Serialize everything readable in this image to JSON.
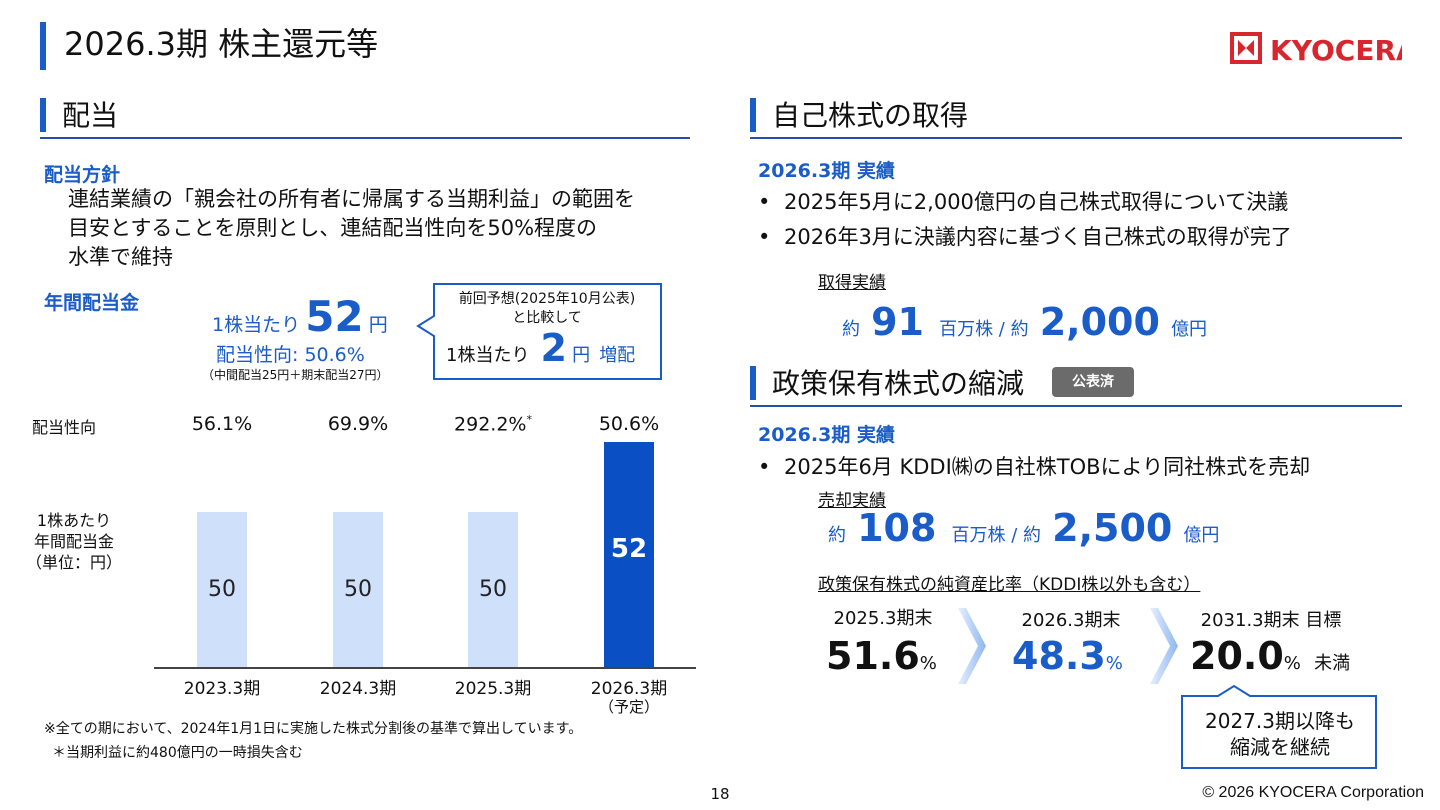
{
  "header": {
    "title": "2026.3期 株主還元等",
    "logo_text": "KYOCERA"
  },
  "dividend": {
    "section_title": "配当",
    "policy_head": "配当方針",
    "policy_lines": [
      "連結業績の「親会社の所有者に帰属する当期利益」の範囲を",
      "目安とすることを原則とし、連結配当性向を50%程度の",
      "水準で維持"
    ],
    "annual_head": "年間配当金",
    "per_share_prefix": "1株当たり",
    "per_share_value": "52",
    "per_share_unit": "円",
    "payout_line": "配当性向: 50.6%",
    "breakdown": "（中間配当25円＋期末配当27円）",
    "callout": {
      "line1": "前回予想(2025年10月公表)",
      "line2": "と比較して",
      "prefix": "1株当たり",
      "value": "2",
      "unit": "円",
      "suffix": "増配"
    }
  },
  "chart_data": {
    "type": "bar",
    "row_label_ratio": "配当性向",
    "ylabel_lines": [
      "1株あたり",
      "年間配当金",
      "（単位：円）"
    ],
    "categories": [
      "2023.3期",
      "2024.3期",
      "2025.3期",
      "2026.3期"
    ],
    "category_note": [
      "",
      "",
      "",
      "（予定）"
    ],
    "values": [
      50,
      50,
      50,
      52
    ],
    "value_labels": [
      "50",
      "50",
      "50",
      "52"
    ],
    "payout_ratios": [
      "56.1%",
      "69.9%",
      "292.2%",
      "50.6%"
    ],
    "ratio_marks": [
      "",
      "",
      "*",
      ""
    ],
    "colors": [
      "#cfe0fb",
      "#cfe0fb",
      "#cfe0fb",
      "#0a4fc4"
    ],
    "highlight_index": 3
  },
  "notes": {
    "note1": "※全ての期において、2024年1月1日に実施した株式分割後の基準で算出しています。",
    "note2": "＊当期利益に約480億円の一時損失含む"
  },
  "buyback": {
    "section_title": "自己株式の取得",
    "result_head": "2026.3期 実績",
    "bullets": [
      "2025年5月に2,000億円の自己株式取得について決議",
      "2026年3月に決議内容に基づく自己株式の取得が完了"
    ],
    "result_label": "取得実績",
    "approx1": "約",
    "shares_value": "91",
    "shares_unit": "百万株 / 約",
    "amount_value": "2,000",
    "amount_unit": "億円"
  },
  "crossholding": {
    "section_title": "政策保有株式の縮減",
    "badge": "公表済",
    "result_head": "2026.3期 実績",
    "bullet": "2025年6月 KDDI㈱の自社株TOBにより同社株式を売却",
    "sale_label": "売却実績",
    "approx1": "約",
    "shares_value": "108",
    "shares_unit": "百万株 / 約",
    "amount_value": "2,500",
    "amount_unit": "億円",
    "ratio_label": "政策保有株式の純資産比率（KDDI株以外も含む）",
    "periods": [
      {
        "label": "2025.3期末",
        "value": "51.6",
        "unit": "%",
        "suffix": ""
      },
      {
        "label": "2026.3期末",
        "value": "48.3",
        "unit": "%",
        "suffix": ""
      },
      {
        "label": "2031.3期末 目標",
        "value": "20.0",
        "unit": "%",
        "suffix": "未満"
      }
    ],
    "callout_lines": [
      "2027.3期以降も",
      "縮減を継続"
    ]
  },
  "footer": {
    "page_number": "18",
    "copyright": "© 2026 KYOCERA Corporation"
  }
}
